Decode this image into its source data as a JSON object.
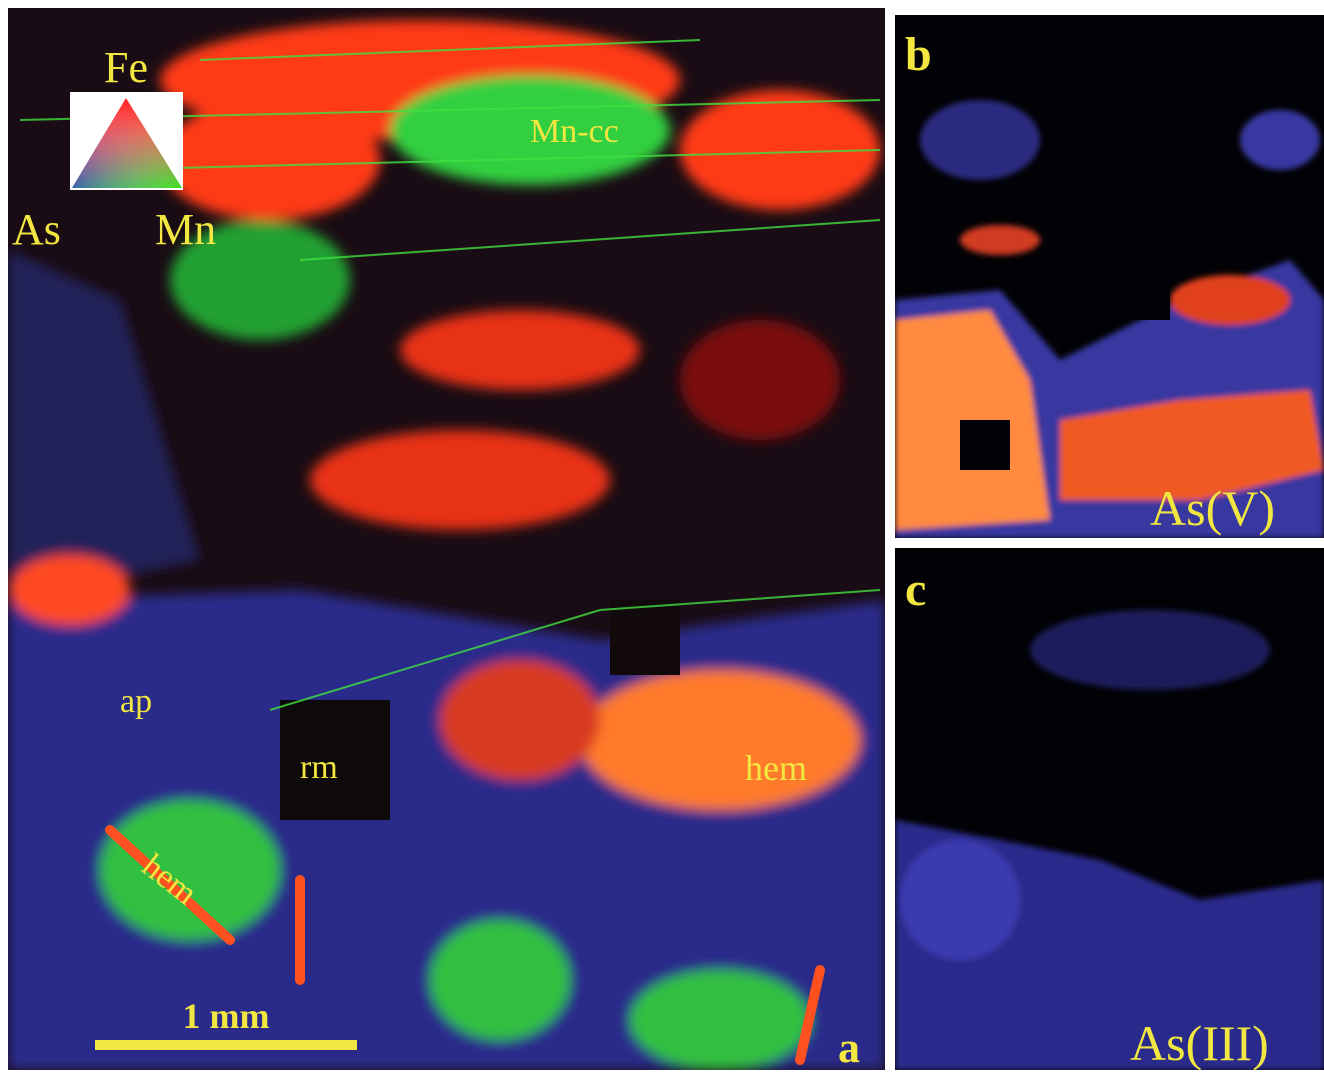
{
  "panels": {
    "a": {
      "label": "a",
      "legend": {
        "top": "Fe",
        "left": "As",
        "right": "Mn"
      },
      "annotations": [
        "Mn-cc",
        "ap",
        "rm",
        "hem",
        "hem"
      ],
      "scale_bar": "1 mm"
    },
    "b": {
      "label": "b",
      "caption": "As(V)"
    },
    "c": {
      "label": "c",
      "caption": "As(III)"
    }
  }
}
